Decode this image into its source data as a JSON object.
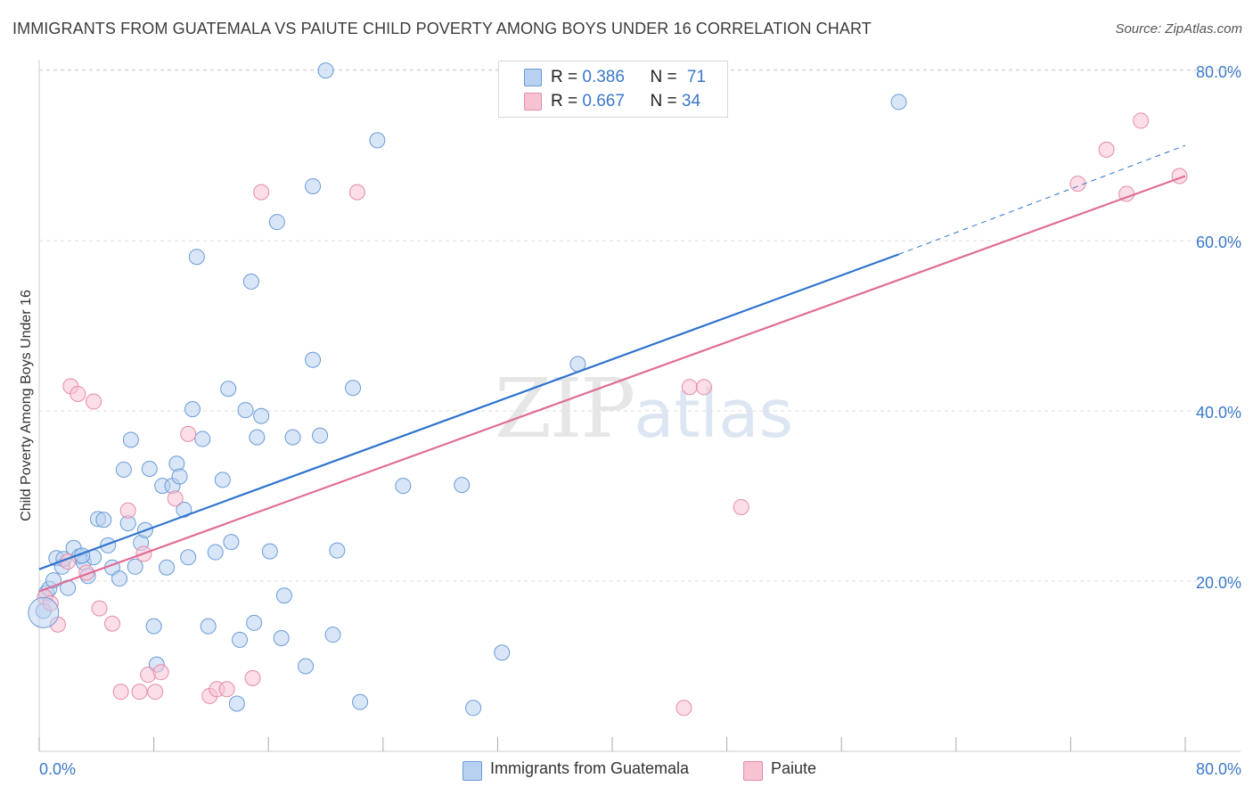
{
  "title": "IMMIGRANTS FROM GUATEMALA VS PAIUTE CHILD POVERTY AMONG BOYS UNDER 16 CORRELATION CHART",
  "source": "Source: ZipAtlas.com",
  "watermark": {
    "zip": "ZIP",
    "atlas": "atlas"
  },
  "colors": {
    "blue_fill": "#b9d1f1",
    "blue_stroke": "#6a9bd8",
    "blue_line": "#2f73cf",
    "pink_fill": "#f7c3d3",
    "pink_stroke": "#e68aa8",
    "pink_line": "#e06d97",
    "grid": "#dddddd",
    "tick_label": "#3a78c9"
  },
  "legend_top": [
    {
      "series": "Immigrants from Guatemala",
      "r_label": "R =",
      "r_value": "0.386",
      "n_label": "N =",
      "n_value": "71"
    },
    {
      "series": "Paiute",
      "r_label": "R =",
      "r_value": "0.667",
      "n_label": "N =",
      "n_value": "34"
    }
  ],
  "chart_data": {
    "type": "scatter",
    "title": "IMMIGRANTS FROM GUATEMALA VS PAIUTE CHILD POVERTY AMONG BOYS UNDER 16 CORRELATION CHART",
    "xlabel": "",
    "ylabel": "Child Poverty Among Boys Under 16",
    "xlim": [
      0,
      80
    ],
    "ylim": [
      0,
      82
    ],
    "x_tick_labels": [
      "0.0%",
      "80.0%"
    ],
    "y_ticks": [
      20,
      40,
      60,
      80
    ],
    "y_tick_labels": [
      "20.0%",
      "40.0%",
      "60.0%",
      "80.0%"
    ],
    "grid": true,
    "legend_position": "bottom",
    "series": [
      {
        "name": "Immigrants from Guatemala",
        "color": "blue",
        "R": 0.386,
        "N": 71,
        "trendline": {
          "x": [
            0,
            60
          ],
          "y": [
            21.4,
            58.4
          ],
          "dashed_extension_to": [
            80,
            71.2
          ]
        },
        "points": [
          [
            0.3,
            16.5
          ],
          [
            0.5,
            18.6
          ],
          [
            0.7,
            19.1
          ],
          [
            1.0,
            20.1
          ],
          [
            1.2,
            22.7
          ],
          [
            1.6,
            21.7
          ],
          [
            2.0,
            19.2
          ],
          [
            2.4,
            23.9
          ],
          [
            2.8,
            22.9
          ],
          [
            3.1,
            22.2
          ],
          [
            3.4,
            20.6
          ],
          [
            3.8,
            22.8
          ],
          [
            4.1,
            27.3
          ],
          [
            4.5,
            27.2
          ],
          [
            4.8,
            24.2
          ],
          [
            5.1,
            21.6
          ],
          [
            5.6,
            20.3
          ],
          [
            5.9,
            33.1
          ],
          [
            6.2,
            26.8
          ],
          [
            6.4,
            36.6
          ],
          [
            6.7,
            21.7
          ],
          [
            7.1,
            24.5
          ],
          [
            7.4,
            26.0
          ],
          [
            7.7,
            33.2
          ],
          [
            8.0,
            14.7
          ],
          [
            8.6,
            31.2
          ],
          [
            8.9,
            21.6
          ],
          [
            9.3,
            31.2
          ],
          [
            9.6,
            33.8
          ],
          [
            9.8,
            32.3
          ],
          [
            10.1,
            28.4
          ],
          [
            10.4,
            22.8
          ],
          [
            10.7,
            40.2
          ],
          [
            11.0,
            58.1
          ],
          [
            11.4,
            36.7
          ],
          [
            11.8,
            14.7
          ],
          [
            12.3,
            23.4
          ],
          [
            12.8,
            31.9
          ],
          [
            13.2,
            42.6
          ],
          [
            13.4,
            24.6
          ],
          [
            13.8,
            5.6
          ],
          [
            14.0,
            13.1
          ],
          [
            14.4,
            40.1
          ],
          [
            14.8,
            55.2
          ],
          [
            15.0,
            15.1
          ],
          [
            15.2,
            36.9
          ],
          [
            15.5,
            39.4
          ],
          [
            16.1,
            23.5
          ],
          [
            16.6,
            62.2
          ],
          [
            16.9,
            13.3
          ],
          [
            17.1,
            18.3
          ],
          [
            17.7,
            36.9
          ],
          [
            18.6,
            10.0
          ],
          [
            19.1,
            66.4
          ],
          [
            19.1,
            46.0
          ],
          [
            19.6,
            37.1
          ],
          [
            20.0,
            80.0
          ],
          [
            20.5,
            13.7
          ],
          [
            20.8,
            23.6
          ],
          [
            21.9,
            42.7
          ],
          [
            22.4,
            5.8
          ],
          [
            23.6,
            71.8
          ],
          [
            25.4,
            31.2
          ],
          [
            29.5,
            31.3
          ],
          [
            30.3,
            5.1
          ],
          [
            32.3,
            11.6
          ],
          [
            37.6,
            45.5
          ],
          [
            60.0,
            76.3
          ],
          [
            8.2,
            10.2
          ],
          [
            3.0,
            23.0
          ],
          [
            1.7,
            22.6
          ]
        ]
      },
      {
        "name": "Paiute",
        "color": "pink",
        "R": 0.667,
        "N": 34,
        "trendline": {
          "x": [
            0,
            80
          ],
          "y": [
            18.8,
            67.6
          ]
        },
        "points": [
          [
            0.4,
            18.1
          ],
          [
            0.8,
            17.4
          ],
          [
            1.3,
            14.9
          ],
          [
            2.0,
            22.3
          ],
          [
            2.2,
            42.9
          ],
          [
            2.7,
            42.0
          ],
          [
            3.3,
            21.0
          ],
          [
            3.8,
            41.1
          ],
          [
            4.2,
            16.8
          ],
          [
            5.1,
            15.0
          ],
          [
            5.7,
            7.0
          ],
          [
            6.2,
            28.3
          ],
          [
            7.0,
            7.0
          ],
          [
            7.3,
            23.2
          ],
          [
            7.6,
            9.0
          ],
          [
            8.1,
            7.0
          ],
          [
            8.5,
            9.3
          ],
          [
            9.5,
            29.7
          ],
          [
            10.4,
            37.3
          ],
          [
            11.9,
            6.5
          ],
          [
            12.4,
            7.3
          ],
          [
            13.1,
            7.3
          ],
          [
            14.9,
            8.6
          ],
          [
            15.5,
            65.7
          ],
          [
            22.2,
            65.7
          ],
          [
            45.0,
            5.1
          ],
          [
            45.4,
            42.8
          ],
          [
            46.4,
            42.8
          ],
          [
            49.0,
            28.7
          ],
          [
            72.5,
            66.7
          ],
          [
            74.5,
            70.7
          ],
          [
            75.9,
            65.5
          ],
          [
            76.9,
            74.1
          ],
          [
            79.6,
            67.6
          ]
        ]
      }
    ]
  }
}
